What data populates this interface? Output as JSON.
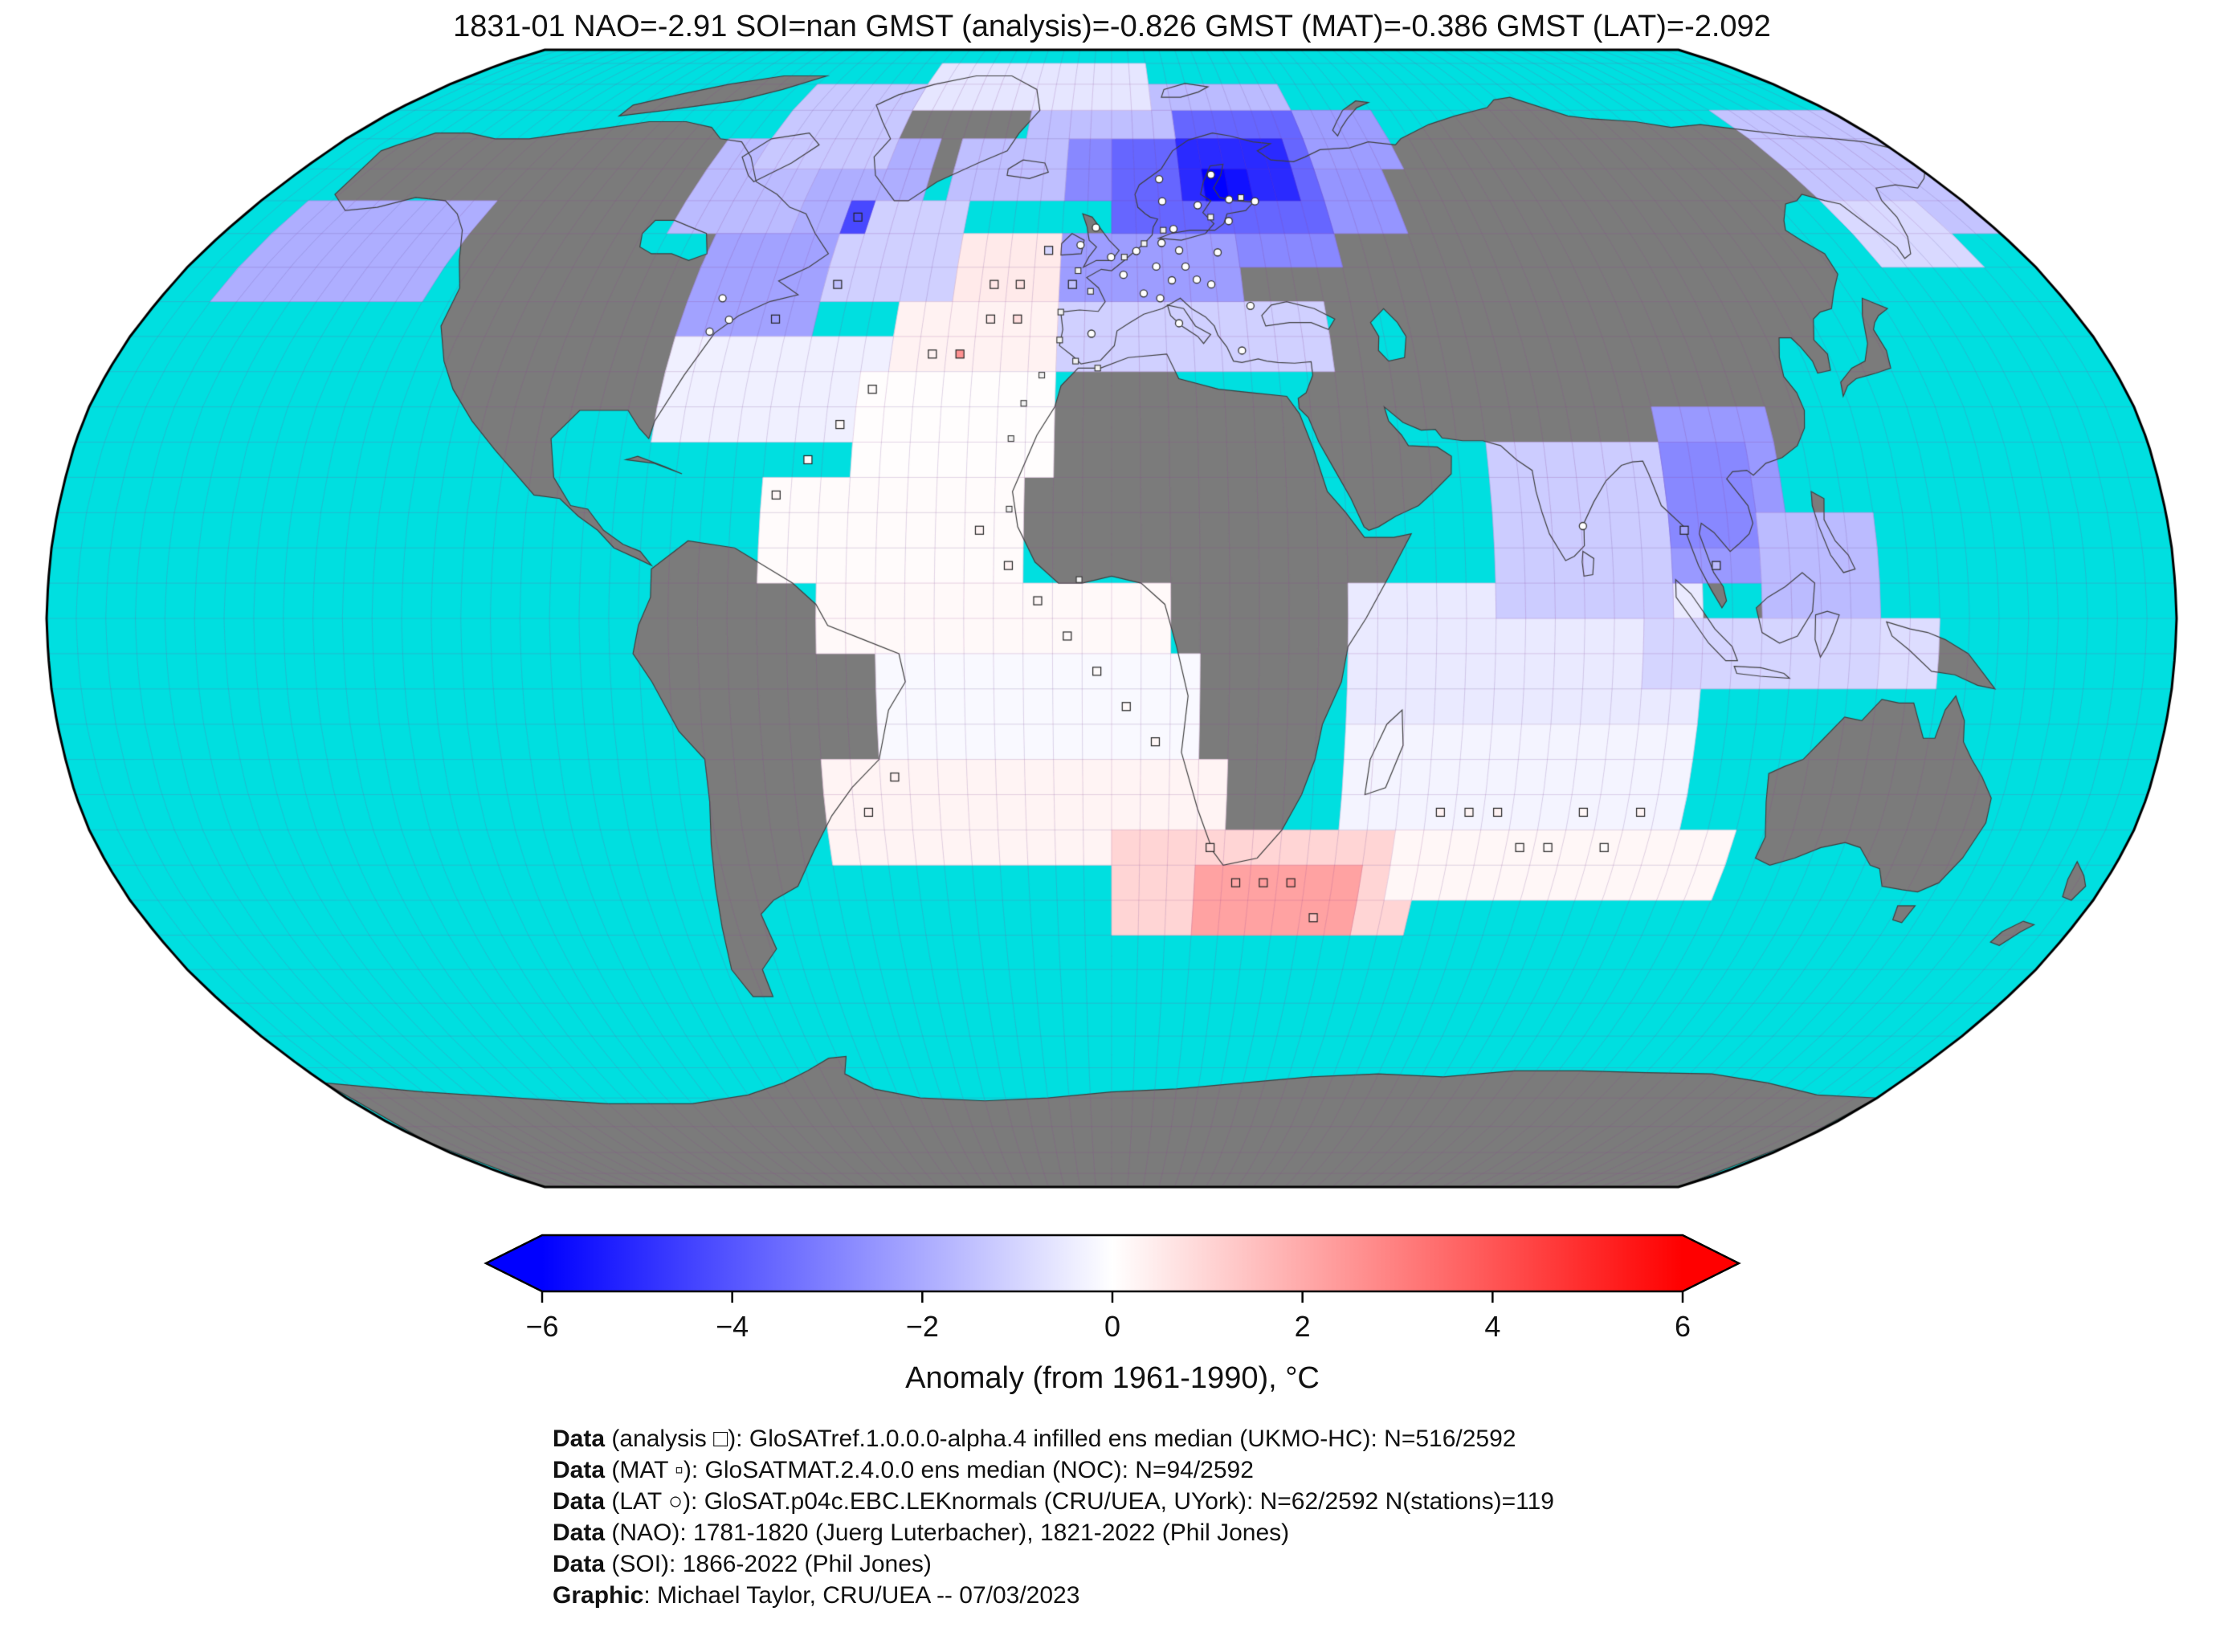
{
  "title": "1831-01 NAO=-2.91 SOI=nan GMST (analysis)=-0.826 GMST (MAT)=-0.386 GMST (LAT)=-2.092",
  "chart_data": {
    "type": "heatmap",
    "projection": "robinson",
    "date": "1831-01",
    "indices": {
      "NAO": -2.91,
      "SOI": "nan",
      "GMST_analysis": -0.826,
      "GMST_MAT": -0.386,
      "GMST_LAT": -2.092
    },
    "colorbar": {
      "label": "Anomaly (from 1961-1990), °C",
      "min": -6,
      "max": 6,
      "colormap": "blue-white-red",
      "color_left": "#0000ff",
      "color_mid": "#ffffff",
      "color_right": "#ff0000",
      "ticks": [
        {
          "v": -6,
          "label": "−6"
        },
        {
          "v": -4,
          "label": "−4"
        },
        {
          "v": -2,
          "label": "−2"
        },
        {
          "v": 0,
          "label": "0"
        },
        {
          "v": 2,
          "label": "2"
        },
        {
          "v": 4,
          "label": "4"
        },
        {
          "v": 6,
          "label": "6"
        }
      ]
    },
    "map_colors": {
      "ocean": "#00dfe0",
      "land": "#7b7b7b",
      "coast": "#3f3f3f",
      "graticule": "rgba(145,65,150,0.30)",
      "outline": "#000000"
    },
    "anomaly_blocks": [
      [
        35,
        45,
        -10,
        40,
        -1.1
      ],
      [
        45,
        55,
        -10,
        25,
        -2.3
      ],
      [
        50,
        60,
        25,
        45,
        -2.8
      ],
      [
        55,
        65,
        45,
        60,
        -2.5
      ],
      [
        65,
        75,
        40,
        65,
        -2.3
      ],
      [
        55,
        75,
        0,
        45,
        -3.6
      ],
      [
        60,
        70,
        15,
        40,
        -5.0
      ],
      [
        60,
        65,
        20,
        30,
        -5.6
      ],
      [
        60,
        75,
        -10,
        0,
        -2.8
      ],
      [
        70,
        80,
        -20,
        15,
        -1.5
      ],
      [
        75,
        80,
        15,
        45,
        -1.6
      ],
      [
        75,
        85,
        -50,
        10,
        -0.6
      ],
      [
        60,
        70,
        -35,
        -10,
        -1.5
      ],
      [
        50,
        70,
        -70,
        -40,
        -1.9
      ],
      [
        55,
        70,
        -90,
        -65,
        -1.6
      ],
      [
        65,
        80,
        -80,
        -50,
        -1.3
      ],
      [
        40,
        55,
        -80,
        -55,
        -2.2
      ],
      [
        45,
        60,
        -55,
        -30,
        -1.1
      ],
      [
        40,
        55,
        -30,
        -10,
        0.5
      ],
      [
        35,
        45,
        -40,
        -10,
        0.3
      ],
      [
        25,
        40,
        -80,
        -40,
        -0.35
      ],
      [
        20,
        35,
        -45,
        -10,
        0.05
      ],
      [
        5,
        20,
        -60,
        -15,
        0.1
      ],
      [
        -5,
        5,
        -50,
        10,
        0.15
      ],
      [
        -20,
        -5,
        -40,
        15,
        -0.15
      ],
      [
        -35,
        -20,
        -50,
        20,
        0.25
      ],
      [
        -45,
        -30,
        0,
        55,
        1.0
      ],
      [
        -45,
        -35,
        15,
        45,
        2.2
      ],
      [
        -15,
        5,
        40,
        100,
        -0.5
      ],
      [
        -30,
        -15,
        40,
        100,
        -0.25
      ],
      [
        -40,
        -30,
        50,
        110,
        0.2
      ],
      [
        0,
        25,
        65,
        95,
        -1.2
      ],
      [
        5,
        30,
        95,
        115,
        -2.4
      ],
      [
        10,
        25,
        95,
        110,
        -2.8
      ],
      [
        0,
        15,
        110,
        130,
        -1.6
      ],
      [
        -10,
        0,
        90,
        130,
        -1.0
      ],
      [
        -10,
        0,
        130,
        140,
        -0.8
      ],
      [
        45,
        60,
        -170,
        -130,
        -1.9
      ],
      [
        55,
        75,
        150,
        180,
        -1.4
      ],
      [
        50,
        60,
        150,
        170,
        -0.9
      ]
    ],
    "extra_cells": [
      [
        57.5,
        -52.5,
        -4.3
      ],
      [
        62.5,
        22.5,
        -6.0
      ]
    ],
    "markers": {
      "analysis_squares": [
        [
          47.5,
          -22.5,
          0.6
        ],
        [
          47.5,
          -17.5,
          0.7
        ],
        [
          42.5,
          -22.5,
          0.5
        ],
        [
          42.5,
          -17.5,
          0.8
        ],
        [
          37.5,
          -27.5,
          2.6
        ],
        [
          37.5,
          -32.5,
          0.3
        ],
        [
          32.5,
          -42.5,
          0.1
        ],
        [
          27.5,
          -47.5,
          0.15
        ],
        [
          22.5,
          -52.5,
          0.1
        ],
        [
          17.5,
          -57.5,
          0.2
        ],
        [
          12.5,
          -22.5,
          0.25
        ],
        [
          7.5,
          -17.5,
          0.3
        ],
        [
          2.5,
          -12.5,
          0.2
        ],
        [
          -2.5,
          -7.5,
          0.15
        ],
        [
          -7.5,
          -2.5,
          0.1
        ],
        [
          -12.5,
          2.5,
          0.15
        ],
        [
          -17.5,
          7.5,
          0.2
        ],
        [
          -22.5,
          -37.5,
          0.3
        ],
        [
          -27.5,
          -42.5,
          0.35
        ],
        [
          -32.5,
          17.5,
          0.9
        ],
        [
          -37.5,
          22.5,
          2.1
        ],
        [
          -37.5,
          27.5,
          2.3
        ],
        [
          -37.5,
          32.5,
          2.5
        ],
        [
          -42.5,
          37.5,
          1.4
        ],
        [
          -27.5,
          57.5,
          0.3
        ],
        [
          -27.5,
          62.5,
          0.25
        ],
        [
          -27.5,
          67.5,
          0.3
        ],
        [
          -32.5,
          72.5,
          0.2
        ],
        [
          -32.5,
          77.5,
          0.15
        ],
        [
          -27.5,
          82.5,
          0.2
        ],
        [
          -32.5,
          87.5,
          0.1
        ],
        [
          -27.5,
          92.5,
          0.25
        ],
        [
          57.5,
          -52.5,
          -4.2
        ],
        [
          47.5,
          -52.5,
          -1.5
        ],
        [
          42.5,
          -62.5,
          -2.3
        ],
        [
          12.5,
          97.5,
          -2.2
        ],
        [
          7.5,
          102.5,
          -1.6
        ],
        [
          52.5,
          -12.5,
          -1.0
        ],
        [
          47.5,
          -7.5,
          -1.5
        ]
      ],
      "mat_squares": [
        [
          49.5,
          -6.5
        ],
        [
          46.5,
          -4.0
        ],
        [
          43.5,
          -9.5
        ],
        [
          39.5,
          -9.5
        ],
        [
          36.5,
          -6.5
        ],
        [
          35.5,
          -2.5
        ],
        [
          51.5,
          2.5
        ],
        [
          53.5,
          6.5
        ],
        [
          55.5,
          10.5
        ],
        [
          57.5,
          20.5
        ],
        [
          60.5,
          27.5
        ],
        [
          34.5,
          -12.5
        ],
        [
          30.5,
          -15.5
        ],
        [
          25.5,
          -17.5
        ],
        [
          15.5,
          -17.5
        ],
        [
          5.5,
          -5.5
        ]
      ],
      "lat_circles": [
        [
          51.5,
          -0.1
        ],
        [
          48.9,
          2.3
        ],
        [
          52.4,
          4.9
        ],
        [
          50.1,
          8.7
        ],
        [
          53.6,
          10.0
        ],
        [
          48.1,
          11.6
        ],
        [
          52.5,
          13.4
        ],
        [
          55.7,
          12.6
        ],
        [
          59.9,
          10.7
        ],
        [
          59.3,
          18.1
        ],
        [
          60.2,
          24.9
        ],
        [
          63.4,
          10.4
        ],
        [
          50.1,
          14.4
        ],
        [
          47.5,
          19.1
        ],
        [
          52.2,
          21.0
        ],
        [
          56.9,
          24.1
        ],
        [
          59.9,
          30.3
        ],
        [
          45.5,
          9.2
        ],
        [
          44.4,
          26.1
        ],
        [
          40.4,
          -3.7
        ],
        [
          38.0,
          23.7
        ],
        [
          41.9,
          12.5
        ],
        [
          48.2,
          16.4
        ],
        [
          46.2,
          6.1
        ],
        [
          55.9,
          -3.2
        ],
        [
          53.3,
          -6.2
        ],
        [
          42.4,
          -71.1
        ],
        [
          40.7,
          -74.0
        ],
        [
          45.5,
          -73.6
        ],
        [
          13.1,
          80.3
        ],
        [
          64.1,
          21.9
        ]
      ]
    }
  },
  "caption": {
    "lines": [
      {
        "bold": "Data",
        "rest": " (analysis □): GloSATref.1.0.0.0-alpha.4 infilled ens median (UKMO-HC): N=516/2592"
      },
      {
        "bold": "Data",
        "rest": " (MAT ▫): GloSATMAT.2.4.0.0 ens median (NOC): N=94/2592"
      },
      {
        "bold": "Data",
        "rest": " (LAT ○): GloSAT.p04c.EBC.LEKnormals (CRU/UEA, UYork): N=62/2592 N(stations)=119"
      },
      {
        "bold": "Data",
        "rest": " (NAO): 1781-1820 (Juerg Luterbacher), 1821-2022 (Phil Jones)"
      },
      {
        "bold": "Data",
        "rest": " (SOI): 1866-2022 (Phil Jones)"
      },
      {
        "bold": "Graphic",
        "rest": ": Michael Taylor, CRU/UEA -- 07/03/2023"
      }
    ]
  }
}
